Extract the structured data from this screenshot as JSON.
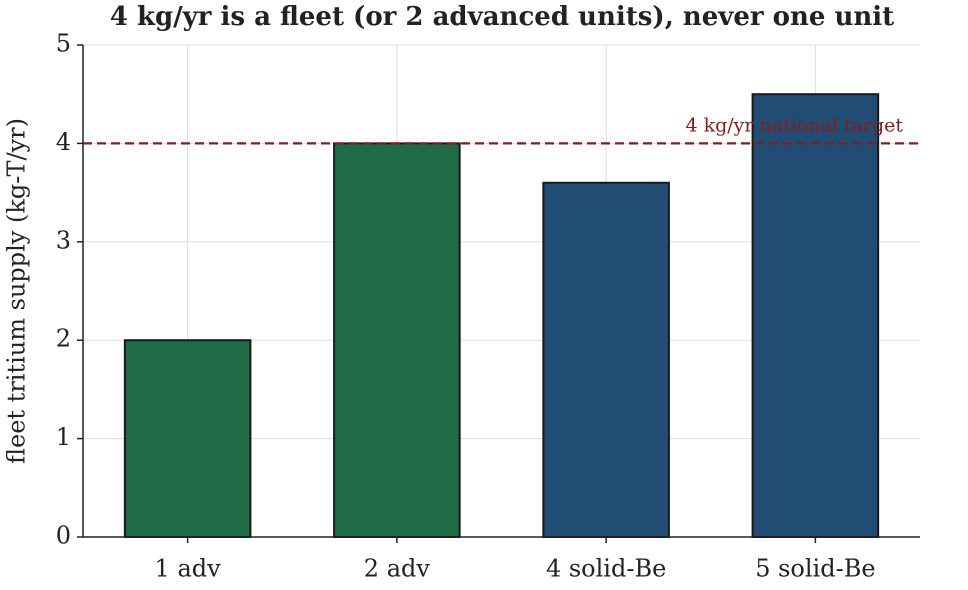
{
  "chart_data": {
    "type": "bar",
    "title": "4 kg/yr is a fleet (or 2 advanced units), never one unit",
    "y_label": "fleet tritium supply (kg-T/yr)",
    "categories": [
      "1 adv",
      "2 adv",
      "4 solid-Be",
      "5 solid-Be"
    ],
    "values": [
      2,
      4,
      3.6,
      4.5
    ],
    "colors": [
      "#1f6b45",
      "#1f6b45",
      "#214d74",
      "#214d74"
    ],
    "ylim": [
      0,
      5
    ],
    "yticks": [
      0,
      1,
      2,
      3,
      4,
      5
    ],
    "grid": true,
    "reference_line": {
      "value": 4,
      "label": "4 kg/yr national target",
      "color": "#8b1a1a"
    }
  }
}
